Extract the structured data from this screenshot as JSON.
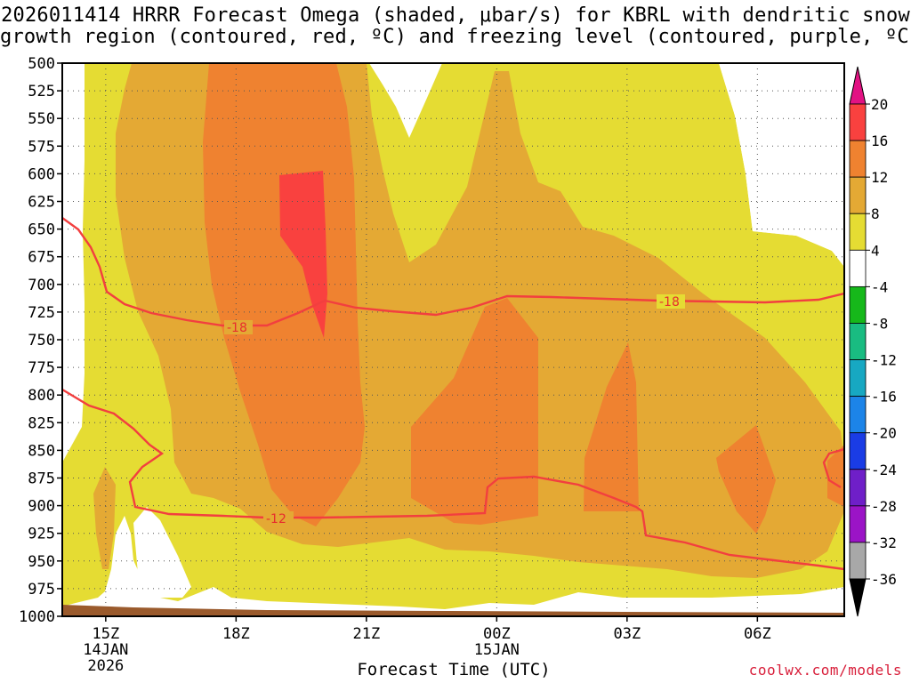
{
  "title": {
    "line1": "2026011414 HRRR Forecast Omega (shaded, μbar/s) for KBRL with dendritic snow",
    "line2": "growth region (contoured, red, ºC) and freezing level (contoured, purple, ºC)"
  },
  "xlabel": "Forecast Time (UTC)",
  "credit": "coolwx.com/models",
  "chart_data": {
    "type": "time-height contour",
    "x_unit": "hour UTC",
    "x_range": [
      "2026-01-14 14Z",
      "2026-01-15 08Z"
    ],
    "y_axis": "pressure (mb)",
    "ylim": [
      1000,
      500
    ],
    "y_ticks": [
      500,
      525,
      550,
      575,
      600,
      625,
      650,
      675,
      700,
      725,
      750,
      775,
      800,
      825,
      850,
      875,
      900,
      925,
      950,
      975,
      1000
    ],
    "x_ticks": [
      {
        "label": "15Z",
        "sub": "14JAN",
        "sub2": "2026"
      },
      {
        "label": "18Z",
        "sub": "",
        "sub2": ""
      },
      {
        "label": "21Z",
        "sub": "",
        "sub2": ""
      },
      {
        "label": "00Z",
        "sub": "15JAN",
        "sub2": ""
      },
      {
        "label": "03Z",
        "sub": "",
        "sub2": ""
      },
      {
        "label": "06Z",
        "sub": "",
        "sub2": ""
      }
    ],
    "grid": "dotted",
    "colorbar": {
      "labels": [
        "20",
        "16",
        "12",
        "8",
        "4",
        "-4",
        "-8",
        "-12",
        "-16",
        "-20",
        "-24",
        "-28",
        "-32",
        "-36"
      ],
      "colors": [
        "#e21283",
        "#f9413f",
        "#ef8230",
        "#e4a934",
        "#e5dc33",
        "#ffffff",
        "#16b81a",
        "#19bc81",
        "#17a8c2",
        "#1c84e8",
        "#1a3ce5",
        "#6f1fc8",
        "#9b14c6",
        "#a8a8a8",
        "#000000"
      ]
    },
    "contour_labels": {
      "minus18": "-18",
      "minus12": "-12"
    },
    "omega_shading": [
      {
        "level": "4 to 8",
        "color": "#e5dc33"
      },
      {
        "level": "8 to 12",
        "color": "#e4a934"
      },
      {
        "level": "12 to 16",
        "color": "#ef8230"
      },
      {
        "level": "16 to 20",
        "color": "#f9413f"
      }
    ],
    "contour_colors": {
      "dgz": "#f23f3f",
      "terrain": "#9a5a2c"
    }
  }
}
